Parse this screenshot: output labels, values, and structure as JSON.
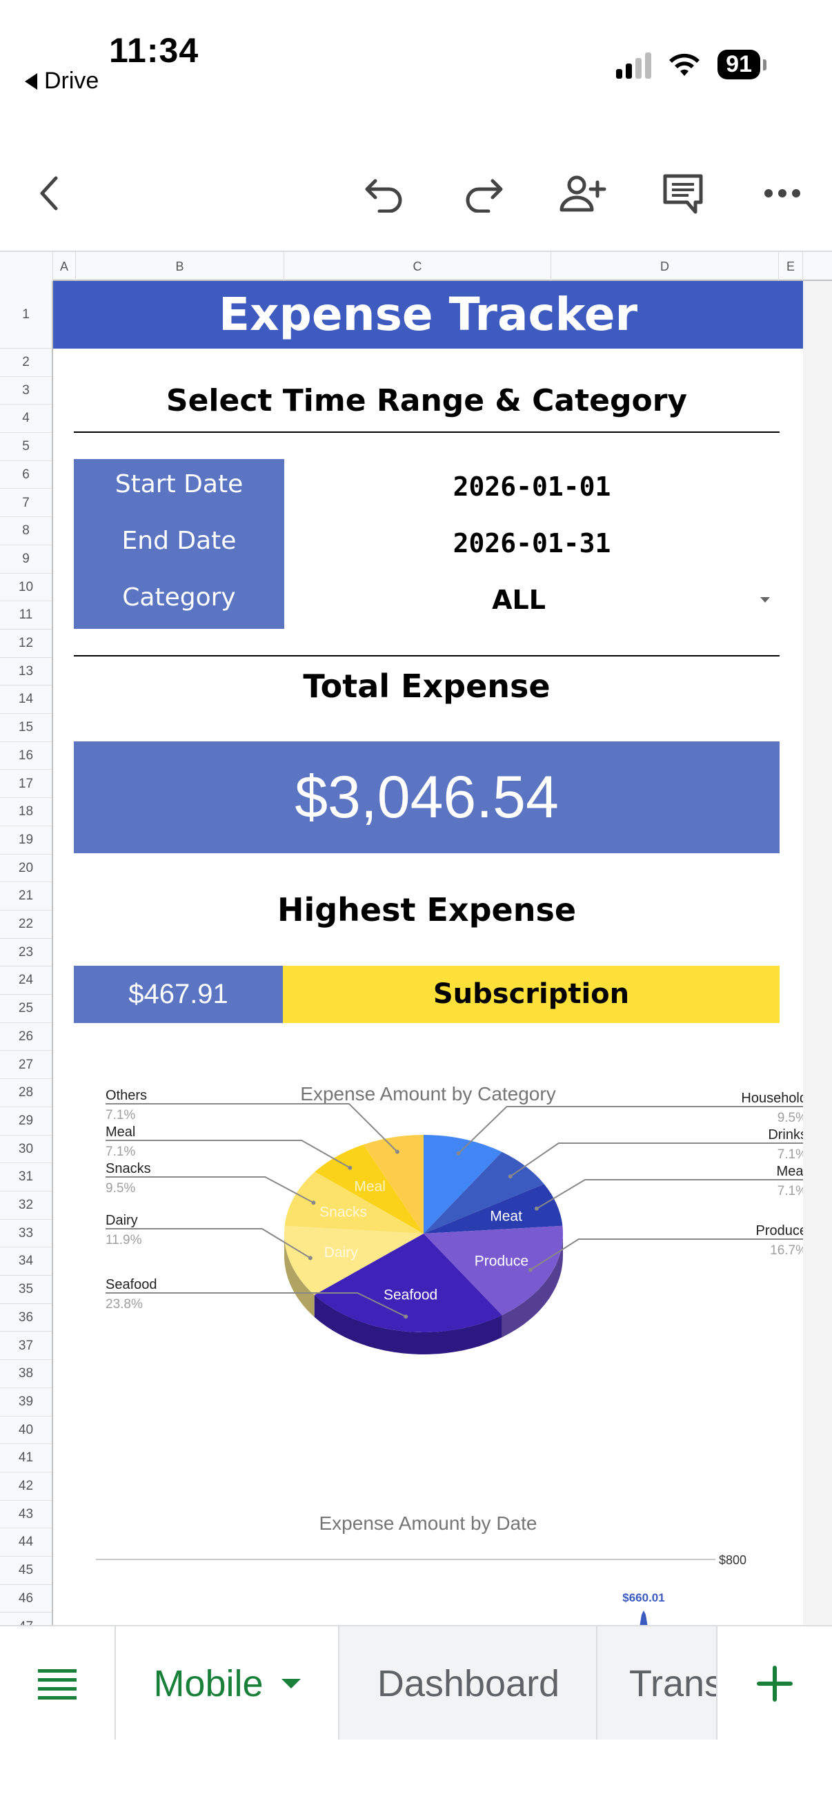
{
  "status": {
    "time": "11:34",
    "back_label": "Drive",
    "battery": "91"
  },
  "toolbar": {
    "icons": [
      "back-arrow-icon",
      "undo-icon",
      "redo-icon",
      "add-person-icon",
      "comment-icon",
      "more-icon"
    ]
  },
  "grid": {
    "columns": [
      "A",
      "B",
      "C",
      "D",
      "E"
    ],
    "rows": [
      "1",
      "2",
      "3",
      "4",
      "5",
      "6",
      "7",
      "8",
      "9",
      "10",
      "11",
      "12",
      "13",
      "14",
      "15",
      "16",
      "17",
      "18",
      "19",
      "20",
      "21",
      "22",
      "23",
      "24",
      "25",
      "26",
      "27",
      "28",
      "29",
      "30",
      "31",
      "32",
      "33",
      "34",
      "35",
      "36",
      "37",
      "38",
      "39",
      "40",
      "41",
      "42",
      "43",
      "44",
      "45",
      "46",
      "47"
    ]
  },
  "sheet": {
    "title": "Expense Tracker",
    "subtitle": "Select Time Range & Category",
    "start_label": "Start Date",
    "end_label": "End Date",
    "category_label": "Category",
    "start_value": "2026-01-01",
    "end_value": "2026-01-31",
    "category_value": "ALL",
    "total_title": "Total Expense",
    "total_value": "$3,046.54",
    "highest_title": "Highest Expense",
    "highest_amount": "$467.91",
    "highest_category": "Subscription"
  },
  "chart_data": [
    {
      "type": "pie",
      "title": "Expense Amount by Category",
      "slices": [
        {
          "label": "Household",
          "percent": "9.5%",
          "value": 9.5,
          "color": "#4285f4"
        },
        {
          "label": "Drinks",
          "percent": "7.1%",
          "value": 7.1,
          "color": "#3b5bc0"
        },
        {
          "label": "Meat",
          "percent": "7.1%",
          "value": 7.1,
          "color": "#2a3db0"
        },
        {
          "label": "Produce",
          "percent": "16.7%",
          "value": 16.7,
          "color": "#7a5ad0"
        },
        {
          "label": "Seafood",
          "percent": "23.8%",
          "value": 23.8,
          "color": "#3f22b8"
        },
        {
          "label": "Dairy",
          "percent": "11.9%",
          "value": 11.9,
          "color": "#fde98a"
        },
        {
          "label": "Snacks",
          "percent": "9.5%",
          "value": 9.5,
          "color": "#fde26a"
        },
        {
          "label": "Meal",
          "percent": "7.1%",
          "value": 7.1,
          "color": "#fbd21a"
        },
        {
          "label": "Others",
          "percent": "7.1%",
          "value": 7.1,
          "color": "#fccd4a"
        }
      ]
    },
    {
      "type": "line",
      "title": "Expense Amount by Date",
      "y_tick": "$800",
      "data_label": "$660.01"
    }
  ],
  "tabs": {
    "menu_icon": "sheet-list-icon",
    "active": "Mobile",
    "second": "Dashboard",
    "third": "Trans",
    "add_icon": "plus-icon"
  },
  "colors": {
    "accent_blue": "#3e5bbf",
    "box_blue": "#5b75c3",
    "highlight_yellow": "#fde03a",
    "tab_green": "#188038"
  }
}
